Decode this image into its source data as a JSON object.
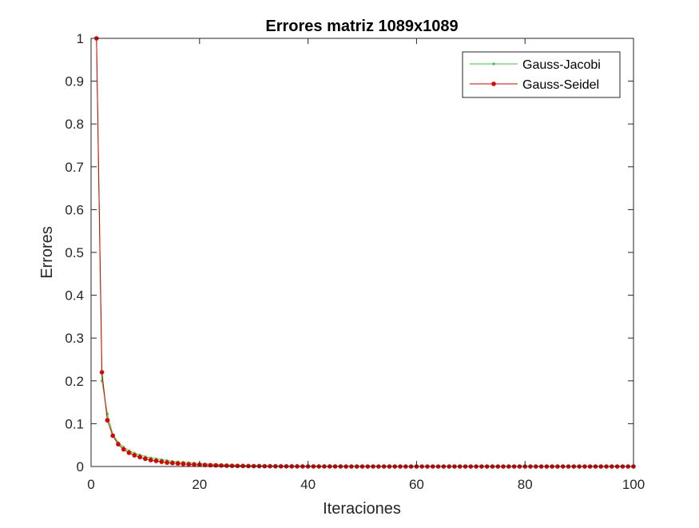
{
  "chart_data": {
    "type": "line",
    "title": "Errores matriz 1089x1089",
    "xlabel": "Iteraciones",
    "ylabel": "Errores",
    "xlim": [
      0,
      100
    ],
    "ylim": [
      0,
      1
    ],
    "xticks": [
      "0",
      "20",
      "40",
      "60",
      "80",
      "100"
    ],
    "yticks": [
      "0",
      "0.1",
      "0.2",
      "0.3",
      "0.4",
      "0.5",
      "0.6",
      "0.7",
      "0.8",
      "0.9",
      "1"
    ],
    "grid": false,
    "legend_position": "top-right",
    "x": [
      1,
      2,
      3,
      4,
      5,
      6,
      7,
      8,
      9,
      10,
      11,
      12,
      13,
      14,
      15,
      16,
      17,
      18,
      19,
      20,
      21,
      22,
      23,
      24,
      25,
      26,
      27,
      28,
      29,
      30,
      31,
      32,
      33,
      34,
      35,
      36,
      37,
      38,
      39,
      40,
      41,
      42,
      43,
      44,
      45,
      46,
      47,
      48,
      49,
      50,
      51,
      52,
      53,
      54,
      55,
      56,
      57,
      58,
      59,
      60,
      61,
      62,
      63,
      64,
      65,
      66,
      67,
      68,
      69,
      70,
      71,
      72,
      73,
      74,
      75,
      76,
      77,
      78,
      79,
      80,
      81,
      82,
      83,
      84,
      85,
      86,
      87,
      88,
      89,
      90,
      91,
      92,
      93,
      94,
      95,
      96,
      97,
      98,
      99,
      100
    ],
    "series": [
      {
        "name": "Gauss-Jacobi",
        "color": "#33cc33",
        "marker_size": "small",
        "values": [
          1.0,
          0.2,
          0.123,
          0.075,
          0.056,
          0.045,
          0.037,
          0.031,
          0.027,
          0.023,
          0.02,
          0.018,
          0.016,
          0.014,
          0.012,
          0.011,
          0.01,
          0.009,
          0.008,
          0.007,
          0.006,
          0.0055,
          0.005,
          0.0045,
          0.004,
          0.0036,
          0.0032,
          0.0029,
          0.0026,
          0.0023,
          0.0021,
          0.0019,
          0.0017,
          0.0015,
          0.0014,
          0.0012,
          0.0011,
          0.001,
          0.0009,
          0.0008,
          0.0007,
          0.0006,
          0.0006,
          0.0005,
          0.0005,
          0.0004,
          0.0004,
          0.0003,
          0.0003,
          0.0003,
          0.0002,
          0.0002,
          0.0002,
          0.0002,
          0.0001,
          0.0001,
          0.0001,
          0.0001,
          0.0001,
          0.0001,
          0,
          0,
          0,
          0,
          0,
          0,
          0,
          0,
          0,
          0,
          0,
          0,
          0,
          0,
          0,
          0,
          0,
          0,
          0,
          0,
          0,
          0,
          0,
          0,
          0,
          0,
          0,
          0,
          0,
          0,
          0,
          0,
          0,
          0,
          0,
          0,
          0,
          0,
          0,
          0
        ]
      },
      {
        "name": "Gauss-Seidel",
        "color": "#e00000",
        "marker_size": "large",
        "values": [
          1.0,
          0.22,
          0.108,
          0.072,
          0.052,
          0.04,
          0.032,
          0.026,
          0.022,
          0.018,
          0.015,
          0.013,
          0.011,
          0.009,
          0.008,
          0.007,
          0.006,
          0.005,
          0.0045,
          0.004,
          0.0035,
          0.003,
          0.0026,
          0.0022,
          0.0019,
          0.0016,
          0.0014,
          0.0012,
          0.001,
          0.0009,
          0.0008,
          0.0007,
          0.0006,
          0.0005,
          0.0004,
          0.0004,
          0.0003,
          0.0003,
          0.0002,
          0.0002,
          0.0002,
          0.0001,
          0.0001,
          0.0001,
          0.0001,
          0.0001,
          0,
          0,
          0,
          0,
          0,
          0,
          0,
          0,
          0,
          0,
          0,
          0,
          0,
          0,
          0,
          0,
          0,
          0,
          0,
          0,
          0,
          0,
          0,
          0,
          0,
          0,
          0,
          0,
          0,
          0,
          0,
          0,
          0,
          0,
          0,
          0,
          0,
          0,
          0,
          0,
          0,
          0,
          0,
          0,
          0,
          0,
          0,
          0,
          0,
          0,
          0,
          0,
          0,
          0
        ]
      }
    ]
  }
}
